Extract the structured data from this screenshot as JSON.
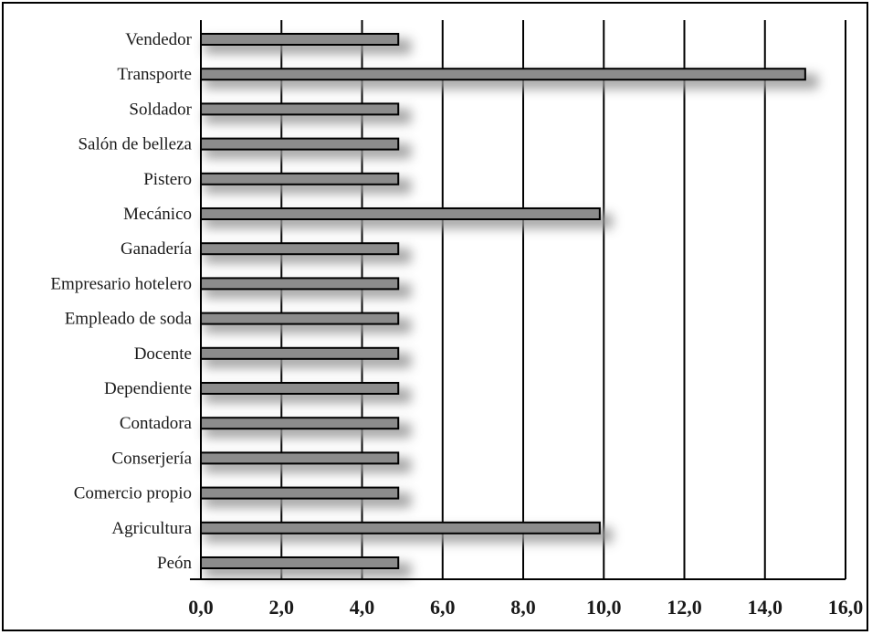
{
  "chart_data": {
    "type": "bar",
    "orientation": "horizontal",
    "title": "",
    "xlabel": "",
    "ylabel": "",
    "categories": [
      "Vendedor",
      "Transporte",
      "Soldador",
      "Salón de belleza",
      "Pistero",
      "Mecánico",
      "Ganadería",
      "Empresario hotelero",
      "Empleado de soda",
      "Docente",
      "Dependiente",
      "Contadora",
      "Conserjería",
      "Comercio propio",
      "Agricultura",
      "Peón"
    ],
    "values": [
      4.9,
      15.0,
      4.9,
      4.9,
      4.9,
      9.9,
      4.9,
      4.9,
      4.9,
      4.9,
      4.9,
      4.9,
      4.9,
      4.9,
      9.9,
      4.9
    ],
    "xlim": [
      0,
      16
    ],
    "xticks": [
      0,
      2,
      4,
      6,
      8,
      10,
      12,
      14,
      16
    ],
    "xtick_labels": [
      "0,0",
      "2,0",
      "4,0",
      "6,0",
      "8,0",
      "10,0",
      "12,0",
      "14,0",
      "16,0"
    ],
    "grid": "vertical",
    "legend": "none",
    "colors": {
      "bar_fill": "#8c8c8c",
      "bar_stroke": "#000000",
      "bar_shadow": "#9a9a9a",
      "grid": "#000000",
      "text": "#1a1a1a"
    }
  }
}
